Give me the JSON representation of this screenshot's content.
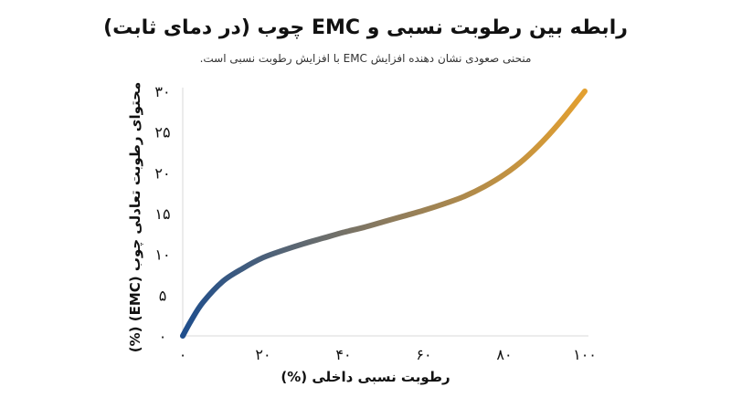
{
  "chart_data": {
    "type": "line",
    "title": "رابطه بین رطوبت نسبی و EMC چوب (در دمای ثابت)",
    "subtitle": "منحنی صعودی نشان دهنده افزایش EMC با افزایش رطوبت نسبی است.",
    "xlabel": "رطوبت نسبی داخلی (%)",
    "ylabel": "محتوای رطوبت تعادلی چوب (EMC) (%)",
    "xlim": [
      0,
      100
    ],
    "ylim": [
      0,
      30
    ],
    "x_ticks": [
      0,
      20,
      40,
      60,
      80,
      100
    ],
    "y_ticks": [
      0,
      5,
      10,
      15,
      20,
      25,
      30
    ],
    "x_tick_labels": [
      "۰",
      "۲۰",
      "۴۰",
      "۶۰",
      "۸۰",
      "۱۰۰"
    ],
    "y_tick_labels": [
      "۰",
      "۵",
      "۱۰",
      "۱۵",
      "۲۰",
      "۲۵",
      "۳۰"
    ],
    "grid": false,
    "colors": {
      "start": "#1f4e8c",
      "middle": "#8a7a5e",
      "end": "#e3a030",
      "axis": "#d9d9d9"
    },
    "series": [
      {
        "x": [
          0,
          2,
          5,
          10,
          15,
          20,
          25,
          30,
          35,
          40,
          45,
          50,
          55,
          60,
          65,
          70,
          75,
          80,
          85,
          90,
          95,
          100
        ],
        "values": [
          0,
          1.8,
          4.1,
          6.7,
          8.3,
          9.6,
          10.5,
          11.3,
          12.0,
          12.7,
          13.3,
          14.0,
          14.7,
          15.4,
          16.2,
          17.1,
          18.3,
          19.8,
          21.7,
          24.1,
          26.9,
          30.0
        ]
      }
    ]
  }
}
